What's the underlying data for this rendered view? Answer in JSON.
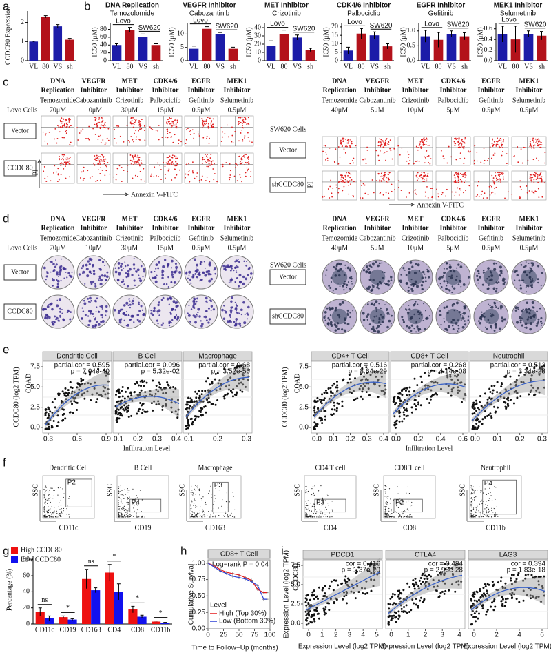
{
  "panel_labels": [
    "a",
    "b",
    "c",
    "d",
    "e",
    "f",
    "g",
    "h",
    "i"
  ],
  "treatments": [
    {
      "class": [
        "DNA",
        "Replication"
      ],
      "color": "#f0901e",
      "drug": "Temozomide"
    },
    {
      "class": [
        "VEGFR",
        "Inhibitor"
      ],
      "color": "#2ecc2e",
      "drug": "Cabozantinib"
    },
    {
      "class": [
        "MET",
        "Inhibitor"
      ],
      "color": "#1515c8",
      "drug": "Crizotinib"
    },
    {
      "class": [
        "CDK4/6",
        "Inhibitor"
      ],
      "color": "#e01ee0",
      "drug": "Palbociclib"
    },
    {
      "class": [
        "EGFR",
        "Inhibitor"
      ],
      "color": "#e81818",
      "drug": "Gefitinib"
    },
    {
      "class": [
        "MEK1",
        "Inhibitor"
      ],
      "color": "#2ed8ee",
      "drug": "Selumetinib"
    }
  ],
  "chart_data": [
    {
      "type": "bar",
      "ylabel": "CCDC80 Expression",
      "categories": [
        "VL",
        "80",
        "VS",
        "sh"
      ],
      "values": [
        1,
        2.3,
        1.8,
        1.1
      ],
      "errors": [
        0.02,
        0.06,
        0.09,
        0.07
      ],
      "colors": [
        "#1c1ca8",
        "#b3121b",
        "#1c1ca8",
        "#b3121b"
      ],
      "ylim": [
        0,
        2.6
      ],
      "yticks": [
        0,
        1,
        2
      ]
    },
    {
      "type": "bar",
      "title": "DNA Replication",
      "title_color": "#f0901e",
      "subtitle": "Temozolomide",
      "ylabel": "IC50 (μM)",
      "annotations": [
        "Lovo",
        "SW620"
      ],
      "categories": [
        "VL",
        "80",
        "VS",
        "sh"
      ],
      "values": [
        40,
        79,
        60,
        40
      ],
      "errors": [
        3,
        6,
        8,
        3
      ],
      "colors": [
        "#1c1ca8",
        "#b3121b",
        "#1c1ca8",
        "#b3121b"
      ],
      "ylim": [
        0,
        95
      ],
      "yticks": [
        0,
        20,
        40,
        60,
        80
      ]
    },
    {
      "type": "bar",
      "title": "VEGFR Inhibitor",
      "title_color": "#2ecc2e",
      "subtitle": "Cabozantinib",
      "ylabel": "IC50 (μM)",
      "annotations": [
        "Lovo",
        "SW620"
      ],
      "categories": [
        "VL",
        "80",
        "VS",
        "sh"
      ],
      "values": [
        4.5,
        12,
        10,
        4.5
      ],
      "errors": [
        1,
        0.8,
        0.6,
        0.6
      ],
      "colors": [
        "#1c1ca8",
        "#b3121b",
        "#1c1ca8",
        "#b3121b"
      ],
      "ylim": [
        0,
        14
      ],
      "yticks": [
        0,
        5,
        10
      ]
    },
    {
      "type": "bar",
      "title": "MET Inhibitor",
      "title_color": "#1515c8",
      "subtitle": "Crizotinib",
      "ylabel": "IC50 (μM)",
      "annotations": [
        "Lovo",
        "SW620"
      ],
      "categories": [
        "VL",
        "80",
        "VS",
        "sh"
      ],
      "values": [
        18,
        32,
        28,
        13
      ],
      "errors": [
        6,
        5,
        3,
        2
      ],
      "colors": [
        "#1c1ca8",
        "#b3121b",
        "#1c1ca8",
        "#b3121b"
      ],
      "ylim": [
        0,
        45
      ],
      "yticks": [
        0,
        10,
        20,
        30,
        40
      ]
    },
    {
      "type": "bar",
      "title": "CDK4/6 Inhibitor",
      "title_color": "#e01ee0",
      "subtitle": "Palbociclib",
      "ylabel": "IC50 (μM)",
      "annotations": [
        "Lovo",
        "SW620"
      ],
      "categories": [
        "VL",
        "80",
        "VS",
        "sh"
      ],
      "values": [
        6,
        16,
        15,
        8.5
      ],
      "errors": [
        2,
        3,
        2,
        1.5
      ],
      "colors": [
        "#1c1ca8",
        "#b3121b",
        "#1c1ca8",
        "#b3121b"
      ],
      "ylim": [
        0,
        22
      ],
      "yticks": [
        0,
        5,
        10,
        15,
        20
      ]
    },
    {
      "type": "bar",
      "title": "EGFR  Inhibitor",
      "title_color": "#e81818",
      "subtitle": "Gefitinib",
      "ylabel": "IC50 (μM)",
      "annotations": [
        "Lovo",
        "SW620"
      ],
      "categories": [
        "VL",
        "80",
        "VS",
        "sh"
      ],
      "values": [
        0.82,
        0.7,
        0.9,
        0.82
      ],
      "errors": [
        0.2,
        0.25,
        0.1,
        0.12
      ],
      "colors": [
        "#1c1ca8",
        "#b3121b",
        "#1c1ca8",
        "#b3121b"
      ],
      "ylim": [
        0,
        1.25
      ],
      "yticks": [
        {
          "value": 0,
          "label": "0.0"
        },
        {
          "value": 0.5,
          "label": "0.5"
        },
        {
          "value": 1,
          "label": "1.0"
        }
      ]
    },
    {
      "type": "bar",
      "title": "MEK1 Inhibitor",
      "title_color": "#2ed8ee",
      "subtitle": "Selumetinib",
      "ylabel": "IC50 (μM)",
      "annotations": [
        "Lovo",
        "SW620"
      ],
      "categories": [
        "VL",
        "80",
        "VS",
        "sh"
      ],
      "values": [
        0.5,
        0.4,
        0.5,
        0.47
      ],
      "errors": [
        0.15,
        0.25,
        0.06,
        0.08
      ],
      "colors": [
        "#1c1ca8",
        "#b3121b",
        "#1c1ca8",
        "#b3121b"
      ],
      "ylim": [
        0,
        0.7
      ],
      "yticks": [
        {
          "value": 0,
          "label": "0.0"
        },
        {
          "value": 0.2,
          "label": "0.2"
        },
        {
          "value": 0.4,
          "label": "0.4"
        },
        {
          "value": 0.6,
          "label": "0.6"
        }
      ]
    },
    {
      "type": "bar",
      "ylabel": "Percentage (%)",
      "categories": [
        "CD11c",
        "CD19",
        "CD163",
        "CD4",
        "CD8",
        "CD11b"
      ],
      "series": [
        {
          "name": "High CCDC80",
          "color": "#ee1111",
          "values": [
            15,
            8.5,
            56,
            64,
            18,
            3
          ],
          "errors": [
            5,
            1.5,
            12,
            10,
            4,
            0.8
          ]
        },
        {
          "name": "Low CCDC80",
          "color": "#1111ee",
          "values": [
            7,
            5.5,
            42,
            40,
            9,
            1.5
          ],
          "errors": [
            3,
            1,
            3,
            10,
            2,
            0.5
          ]
        }
      ],
      "annotations": [
        "ns",
        "*",
        "ns",
        "*",
        "*",
        "*"
      ],
      "ylim": [
        0,
        85
      ],
      "yticks": [
        0,
        20,
        40,
        60,
        80
      ],
      "legend": "top-left"
    },
    {
      "type": "line",
      "title": "CD8+ T Cell",
      "annotation": "Log−rank P = 0.04",
      "xlabel": "Time to Follow−Up (months)",
      "ylabel": "Cumulative Survival",
      "legend_title": "Level",
      "x": [
        0,
        10,
        20,
        30,
        40,
        50,
        60,
        70,
        80,
        90,
        95
      ],
      "series": [
        {
          "name": "High (Top 30%)",
          "color": "#e41a1c",
          "values": [
            1,
            0.96,
            0.9,
            0.86,
            0.84,
            0.82,
            0.78,
            0.74,
            0.6,
            0.55,
            0.55
          ]
        },
        {
          "name": "Low (Bottom 30%)",
          "color": "#2a3fd6",
          "values": [
            1,
            0.94,
            0.88,
            0.84,
            0.8,
            0.78,
            0.76,
            0.72,
            0.66,
            0.45,
            0.45
          ]
        }
      ],
      "xlim": [
        0,
        100
      ],
      "ylim": [
        0,
        1.05
      ],
      "xticks": [
        0,
        25,
        50,
        75,
        100
      ],
      "yticks": [
        {
          "value": 0,
          "label": "0.00"
        },
        {
          "value": 0.25,
          "label": "0.25"
        },
        {
          "value": 0.5,
          "label": "0.50"
        },
        {
          "value": 0.75,
          "label": "0.75"
        },
        {
          "value": 1,
          "label": "1.00"
        }
      ],
      "legend": "bottom-left"
    }
  ],
  "apoptosis": {
    "y_axis": "PI",
    "x_axis": "Annexin V-FITC",
    "groups": [
      {
        "cells": "Lovo Cells",
        "doses": [
          "70μM",
          "10μM",
          "30μM",
          "15μM",
          "0.5μM",
          "0.5μM"
        ],
        "rows": [
          "Vector",
          "CCDC80"
        ]
      },
      {
        "cells": "SW620 Cells",
        "doses": [
          "40μM",
          "5μM",
          "10μM",
          "5μM",
          "0.5μM",
          "0.5μM"
        ],
        "rows": [
          "Vector",
          "shCCDC80"
        ]
      }
    ]
  },
  "colony": {
    "groups": [
      {
        "cells": "Lovo Cells",
        "doses": [
          "70μM",
          "10μM",
          "30μM",
          "15μM",
          "0.5μM",
          "0.5μM"
        ],
        "rows": [
          "Vector",
          "CCDC80"
        ]
      },
      {
        "cells": "SW620 Cells",
        "doses": [
          "40μM",
          "5μM",
          "10μM",
          "5μM",
          "0.5μM",
          "0.5μM"
        ],
        "rows": [
          "Vector",
          "shCCDC80"
        ]
      }
    ]
  },
  "immune_correlation": {
    "ylabel": "CCDC80  (log2 TPM)",
    "cancer": "COAD",
    "xlabel": "Infiltration Level",
    "yticks": [
      "0.0",
      "2.5",
      "5.0",
      "7.5"
    ],
    "panels": [
      {
        "title": "Dendritic Cell",
        "cor": "partial.cor = 0.595",
        "p": "p = 7.04e-40",
        "xticks": [
          "0.3",
          "0.6",
          "0.9"
        ]
      },
      {
        "title": "B Cell",
        "cor": "partial.cor = 0.096",
        "p": "p = 5.32e-02",
        "xticks": [
          "0.1",
          "0.2",
          "0.3",
          "0.4"
        ]
      },
      {
        "title": "Macrophage",
        "cor": "partial.cor = 0.68",
        "p": "p = 3.52e-56",
        "xticks": [
          "0.1",
          "0.2",
          "0.3"
        ]
      },
      {
        "title": "CD4+ T Cell",
        "cor": "partial.cor = 0.516",
        "p": "p = 8.64e-29",
        "xticks": [
          "0.0",
          "0.1",
          "0.2",
          "0.3",
          "0.4"
        ]
      },
      {
        "title": "CD8+ T Cell",
        "cor": "partial.cor = 0.268",
        "p": "p = 4.14e-08",
        "xticks": [
          "0.0",
          "0.2",
          "0.4",
          "0.6"
        ]
      },
      {
        "title": "Neutrophil",
        "cor": "partial.cor = 0.513",
        "p": "p = 3.34e-28",
        "xticks": [
          "0.0",
          "0.1",
          "0.2",
          "0.3"
        ]
      }
    ]
  },
  "gating": {
    "y_axis": "SSC",
    "panels": [
      {
        "title": "Dendritic Cell",
        "marker": "CD11c",
        "gate": "P2"
      },
      {
        "title": "B Cell",
        "marker": "CD19",
        "gate": "P4"
      },
      {
        "title": "Macrophage",
        "marker": "CD163",
        "gate": "P3"
      },
      {
        "title": "CD4 T cell",
        "marker": "CD4",
        "gate": "P3"
      },
      {
        "title": "CD8 T cell",
        "marker": "CD8",
        "gate": "P2"
      },
      {
        "title": "Neutrophil",
        "marker": "CD11b",
        "gate": "P4"
      }
    ]
  },
  "checkpoint_correlation": {
    "ylabel": "Expression Level (log2 TPM)",
    "gene": "CCDC80",
    "xlabel": "Expression Level (log2 TPM)",
    "yticks": [
      "0.0",
      "2.5",
      "5.0",
      "7.5"
    ],
    "panels": [
      {
        "title": "PDCD1",
        "cor": "cor = 0.416",
        "p": "p = 1.37e-20",
        "xticks": [
          "0",
          "1",
          "2",
          "3",
          "4",
          "5"
        ]
      },
      {
        "title": "CTLA4",
        "cor": "cor = 0.484",
        "p": "p = 2.93e-28",
        "xticks": [
          "0",
          "1",
          "2",
          "3",
          "4"
        ]
      },
      {
        "title": "LAG3",
        "cor": "cor = 0.394",
        "p": "p = 1.83e-18",
        "xticks": [
          "0",
          "2",
          "4",
          "6"
        ]
      }
    ]
  }
}
